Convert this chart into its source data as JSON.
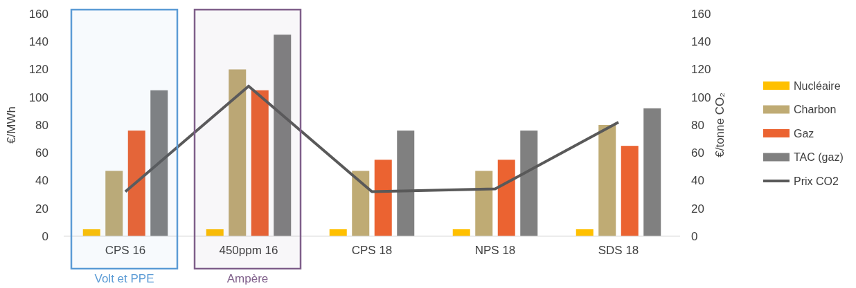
{
  "chart_data": {
    "type": "bar",
    "categories": [
      "CPS 16",
      "450ppm 16",
      "CPS 18",
      "NPS 18",
      "SDS 18"
    ],
    "ylabel": "€/MWh",
    "y2label": "€/tonne CO₂",
    "ylim": [
      0,
      160
    ],
    "yticks": [
      0,
      20,
      40,
      60,
      80,
      100,
      120,
      140,
      160
    ],
    "y2lim": [
      0,
      160
    ],
    "y2ticks": [
      0,
      20,
      40,
      60,
      80,
      100,
      120,
      140,
      160
    ],
    "series": [
      {
        "name": "Nucléaire",
        "color": "#ffc000",
        "values": [
          5,
          5,
          5,
          5,
          5
        ]
      },
      {
        "name": "Charbon",
        "color": "#bfab74",
        "values": [
          47,
          120,
          47,
          47,
          80
        ]
      },
      {
        "name": "Gaz",
        "color": "#eb6331",
        "values": [
          76,
          105,
          55,
          55,
          65
        ]
      },
      {
        "name": "TAC (gaz)",
        "color": "#808080",
        "values": [
          105,
          145,
          76,
          76,
          92
        ]
      },
      {
        "name": "Prix CO2",
        "type": "line",
        "axis": "y2",
        "color": "#595959",
        "values": [
          32,
          108,
          32,
          34,
          82
        ]
      }
    ],
    "bands": [
      {
        "axis": "x",
        "from": "CPS 16",
        "to": "CPS 16",
        "label": "Volt et PPE",
        "color": "#5b9bd5"
      },
      {
        "axis": "x",
        "from": "450ppm 16",
        "to": "450ppm 16",
        "label": "Ampère",
        "color": "#7f5f8a"
      }
    ],
    "legend": "right",
    "grid": false
  }
}
